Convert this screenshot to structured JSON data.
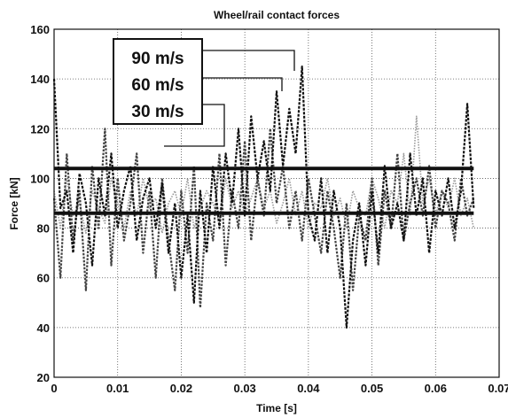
{
  "chart_data": {
    "type": "line",
    "title": "Wheel/rail contact forces",
    "xlabel": "Time [s]",
    "ylabel": "Force [kN]",
    "xlim": [
      0,
      0.07
    ],
    "ylim": [
      20,
      160
    ],
    "grid": true,
    "legend_position": "top-center",
    "x_ticks": [
      "0",
      "0.01",
      "0.02",
      "0.03",
      "0.04",
      "0.05",
      "0.06",
      "0.07"
    ],
    "y_ticks": [
      "20",
      "40",
      "60",
      "80",
      "100",
      "120",
      "140",
      "160"
    ],
    "series": [
      {
        "name": "90 m/s",
        "color": "#111111",
        "x": [
          0.0,
          0.001,
          0.002,
          0.003,
          0.004,
          0.005,
          0.006,
          0.007,
          0.008,
          0.009,
          0.01,
          0.011,
          0.012,
          0.013,
          0.014,
          0.015,
          0.016,
          0.017,
          0.018,
          0.019,
          0.02,
          0.021,
          0.022,
          0.023,
          0.024,
          0.025,
          0.026,
          0.027,
          0.028,
          0.029,
          0.03,
          0.031,
          0.032,
          0.033,
          0.034,
          0.035,
          0.036,
          0.037,
          0.038,
          0.039,
          0.04,
          0.041,
          0.042,
          0.043,
          0.044,
          0.045,
          0.046,
          0.047,
          0.048,
          0.049,
          0.05,
          0.051,
          0.052,
          0.053,
          0.054,
          0.055,
          0.056,
          0.057,
          0.058,
          0.059,
          0.06,
          0.061,
          0.062,
          0.063,
          0.064,
          0.065,
          0.066
        ],
        "values": [
          140,
          88,
          95,
          70,
          102,
          90,
          65,
          100,
          85,
          110,
          80,
          95,
          105,
          75,
          92,
          100,
          80,
          98,
          70,
          90,
          60,
          85,
          50,
          95,
          70,
          105,
          80,
          110,
          90,
          120,
          85,
          125,
          100,
          115,
          95,
          135,
          105,
          128,
          110,
          145,
          85,
          75,
          100,
          70,
          95,
          80,
          40,
          75,
          90,
          65,
          95,
          70,
          105,
          80,
          90,
          75,
          110,
          85,
          100,
          70,
          95,
          85,
          100,
          80,
          95,
          130,
          88
        ]
      },
      {
        "name": "60 m/s",
        "color": "#444444",
        "x": [
          0.0,
          0.001,
          0.002,
          0.003,
          0.004,
          0.005,
          0.006,
          0.007,
          0.008,
          0.009,
          0.01,
          0.011,
          0.012,
          0.013,
          0.014,
          0.015,
          0.016,
          0.017,
          0.018,
          0.019,
          0.02,
          0.021,
          0.022,
          0.023,
          0.024,
          0.025,
          0.026,
          0.027,
          0.028,
          0.029,
          0.03,
          0.031,
          0.032,
          0.033,
          0.034,
          0.035,
          0.036,
          0.037,
          0.038,
          0.039,
          0.04,
          0.041,
          0.042,
          0.043,
          0.044,
          0.045,
          0.046,
          0.047,
          0.048,
          0.049,
          0.05,
          0.051,
          0.052,
          0.053,
          0.054,
          0.055,
          0.056,
          0.057,
          0.058,
          0.059,
          0.06,
          0.061,
          0.062,
          0.063,
          0.064,
          0.065,
          0.066
        ],
        "values": [
          92,
          60,
          110,
          75,
          95,
          55,
          105,
          80,
          120,
          65,
          100,
          75,
          90,
          110,
          70,
          95,
          60,
          100,
          75,
          55,
          95,
          70,
          105,
          48,
          90,
          75,
          110,
          65,
          95,
          80,
          115,
          75,
          100,
          85,
          120,
          90,
          105,
          80,
          95,
          75,
          100,
          85,
          70,
          95,
          80,
          60,
          90,
          55,
          85,
          75,
          100,
          65,
          95,
          80,
          110,
          75,
          90,
          100,
          85,
          105,
          80,
          95,
          90,
          75,
          100,
          85,
          92
        ]
      },
      {
        "name": "30 m/s",
        "color": "#999999",
        "x": [
          0.0,
          0.001,
          0.002,
          0.003,
          0.004,
          0.005,
          0.006,
          0.007,
          0.008,
          0.009,
          0.01,
          0.011,
          0.012,
          0.013,
          0.014,
          0.015,
          0.016,
          0.017,
          0.018,
          0.019,
          0.02,
          0.021,
          0.022,
          0.023,
          0.024,
          0.025,
          0.026,
          0.027,
          0.028,
          0.029,
          0.03,
          0.031,
          0.032,
          0.033,
          0.034,
          0.035,
          0.036,
          0.037,
          0.038,
          0.039,
          0.04,
          0.041,
          0.042,
          0.043,
          0.044,
          0.045,
          0.046,
          0.047,
          0.048,
          0.049,
          0.05,
          0.051,
          0.052,
          0.053,
          0.054,
          0.055,
          0.056,
          0.057,
          0.058,
          0.059,
          0.06,
          0.061,
          0.062,
          0.063,
          0.064,
          0.065,
          0.066
        ],
        "values": [
          95,
          80,
          100,
          85,
          90,
          78,
          95,
          88,
          82,
          100,
          90,
          80,
          95,
          85,
          100,
          88,
          92,
          78,
          90,
          95,
          85,
          100,
          80,
          88,
          95,
          90,
          82,
          100,
          88,
          95,
          85,
          92,
          100,
          88,
          95,
          82,
          90,
          100,
          85,
          95,
          80,
          90,
          88,
          100,
          85,
          92,
          80,
          95,
          88,
          85,
          100,
          92,
          80,
          95,
          90,
          110,
          85,
          125,
          90,
          100,
          85,
          95,
          88,
          100,
          85,
          92,
          80
        ]
      }
    ],
    "reference_lines": [
      {
        "y": 104
      },
      {
        "y": 86
      }
    ]
  }
}
